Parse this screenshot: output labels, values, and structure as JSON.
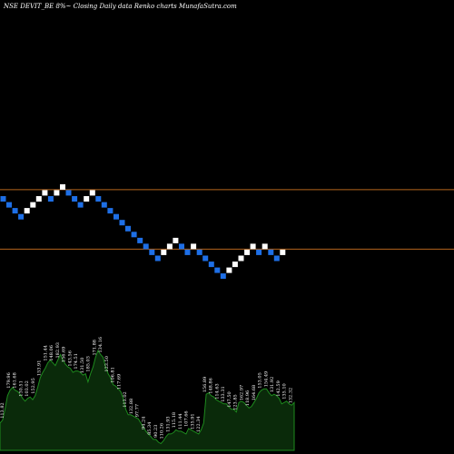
{
  "header": {
    "title_text": "NSE DEVIT_BE 8%~  Closing Daily data  Renko  charts MunafaSutra.com"
  },
  "colors": {
    "background": "#000000",
    "up_brick": "#ffffff",
    "down_brick": "#1e6fe6",
    "ref_line": "#b5651d",
    "volume_fill": "#0a2a0a",
    "volume_stroke": "#1e8a1e",
    "label": "#ffffff"
  },
  "chart_data": {
    "type": "renko",
    "title": "NSE DEVIT_BE 8%~  Closing Daily data  Renko  charts MunafaSutra.com",
    "brick_size_label": "8%",
    "bricks": [
      {
        "dir": "down",
        "level": 0
      },
      {
        "dir": "down",
        "level": -1
      },
      {
        "dir": "down",
        "level": -2
      },
      {
        "dir": "down",
        "level": -3
      },
      {
        "dir": "up",
        "level": -2
      },
      {
        "dir": "up",
        "level": -1
      },
      {
        "dir": "up",
        "level": 0
      },
      {
        "dir": "up",
        "level": 1
      },
      {
        "dir": "down",
        "level": 0
      },
      {
        "dir": "up",
        "level": 1
      },
      {
        "dir": "up",
        "level": 2
      },
      {
        "dir": "down",
        "level": 1
      },
      {
        "dir": "down",
        "level": 0
      },
      {
        "dir": "down",
        "level": -1
      },
      {
        "dir": "up",
        "level": 0
      },
      {
        "dir": "up",
        "level": 1
      },
      {
        "dir": "down",
        "level": 0
      },
      {
        "dir": "down",
        "level": -1
      },
      {
        "dir": "down",
        "level": -2
      },
      {
        "dir": "down",
        "level": -3
      },
      {
        "dir": "down",
        "level": -4
      },
      {
        "dir": "down",
        "level": -5
      },
      {
        "dir": "down",
        "level": -6
      },
      {
        "dir": "down",
        "level": -7
      },
      {
        "dir": "down",
        "level": -8
      },
      {
        "dir": "down",
        "level": -9
      },
      {
        "dir": "down",
        "level": -10
      },
      {
        "dir": "up",
        "level": -9
      },
      {
        "dir": "up",
        "level": -8
      },
      {
        "dir": "up",
        "level": -7
      },
      {
        "dir": "down",
        "level": -8
      },
      {
        "dir": "down",
        "level": -9
      },
      {
        "dir": "up",
        "level": -8
      },
      {
        "dir": "down",
        "level": -9
      },
      {
        "dir": "down",
        "level": -10
      },
      {
        "dir": "down",
        "level": -11
      },
      {
        "dir": "down",
        "level": -12
      },
      {
        "dir": "down",
        "level": -13
      },
      {
        "dir": "up",
        "level": -12
      },
      {
        "dir": "up",
        "level": -11
      },
      {
        "dir": "up",
        "level": -10
      },
      {
        "dir": "up",
        "level": -9
      },
      {
        "dir": "up",
        "level": -8
      },
      {
        "dir": "down",
        "level": -9
      },
      {
        "dir": "up",
        "level": -8
      },
      {
        "dir": "down",
        "level": -9
      },
      {
        "dir": "down",
        "level": -10
      },
      {
        "dir": "up",
        "level": -9
      }
    ],
    "reference_levels": [
      2,
      -8
    ],
    "volume": {
      "values": [
        20,
        22,
        30,
        40,
        44,
        46,
        44,
        43,
        41,
        38,
        36,
        38,
        39,
        37,
        40,
        46,
        53,
        57,
        60,
        64,
        66,
        64,
        62,
        66,
        70,
        66,
        63,
        61,
        60,
        57,
        58,
        58,
        57,
        55,
        56,
        50,
        56,
        61,
        68,
        73,
        70,
        68,
        61,
        56,
        53,
        48,
        47,
        45,
        43,
        38,
        30,
        26,
        26,
        25,
        24,
        23,
        20,
        17,
        14,
        12,
        10,
        8,
        8,
        6,
        5,
        7,
        10,
        12,
        12,
        13,
        15,
        14,
        14,
        13,
        12,
        16,
        15,
        14,
        13,
        12,
        15,
        20,
        41,
        42,
        40,
        39,
        37,
        36,
        35,
        34,
        34,
        32,
        30,
        30,
        28,
        35,
        36,
        35,
        33,
        31,
        32,
        35,
        38,
        42,
        44,
        45,
        45,
        42,
        40,
        41,
        40,
        38,
        34,
        35,
        36,
        34,
        33,
        35
      ],
      "labels": [
        "113.82",
        "179.96",
        "161.68",
        "130.51",
        "103.02",
        "152.95",
        "153.91",
        "151.44",
        "148.06",
        "182.93",
        "156.69",
        "143.56",
        "174.51",
        "131.50",
        "185.03",
        "171.88",
        "134.16",
        "123.50",
        "106.81",
        "117.69",
        "113.02",
        "132.88",
        "97.77",
        "94.24",
        "85.34",
        "90.23",
        "110.26",
        "131.93",
        "115.18",
        "111.44",
        "107.66",
        "135.91",
        "122.34",
        "156.89",
        "148.86",
        "114.63",
        "133.31",
        "147.50",
        "123.85",
        "162.97",
        "118.96",
        "164.68",
        "153.05",
        "154.49",
        "131.92",
        "142.59",
        "135.10",
        "132.32"
      ]
    }
  }
}
